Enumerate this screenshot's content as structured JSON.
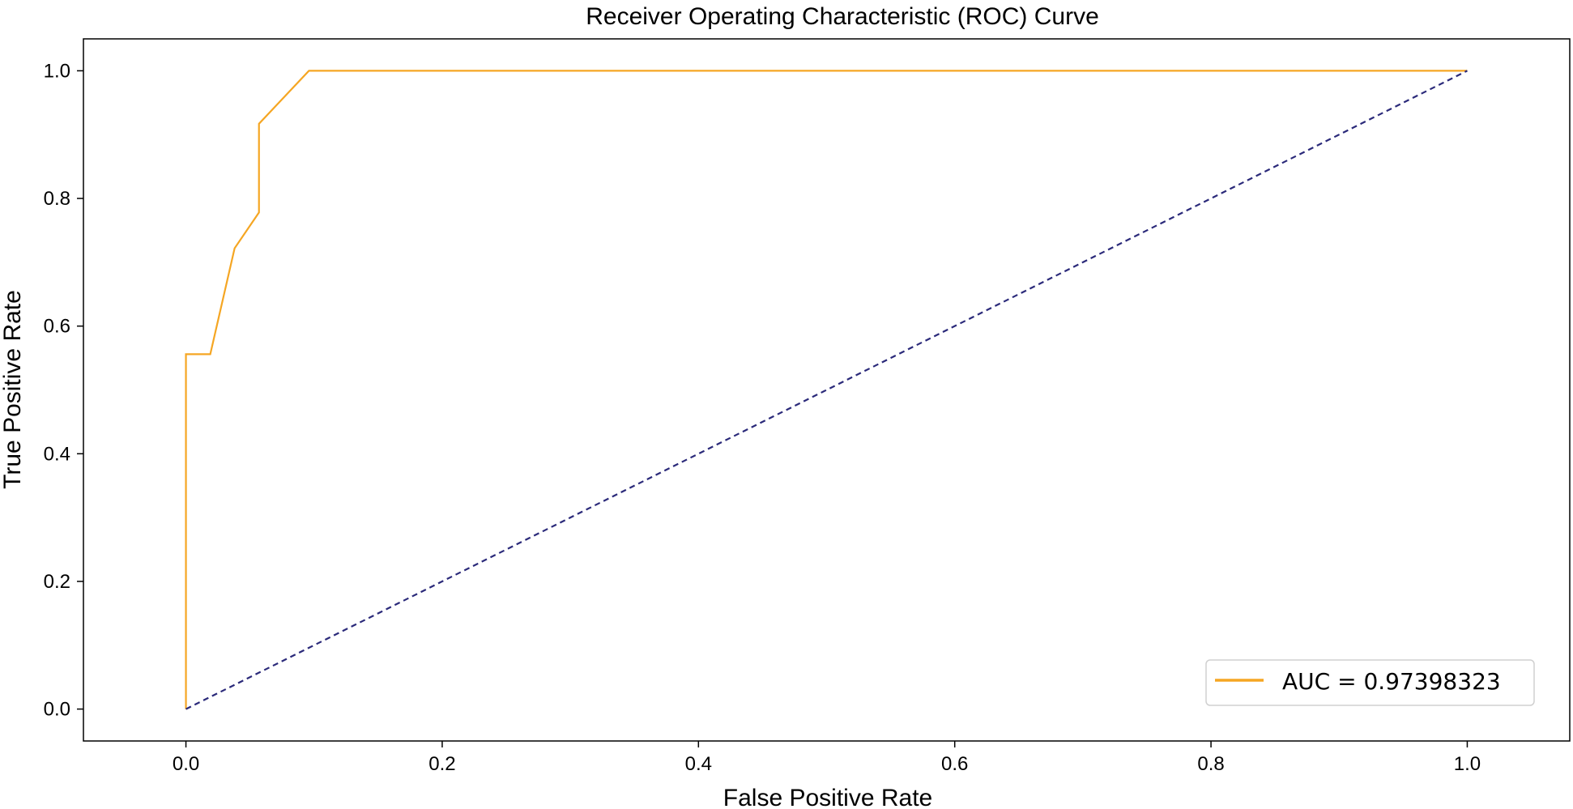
{
  "chart_data": {
    "type": "line",
    "title": "Receiver Operating Characteristic (ROC) Curve",
    "xlabel": "False Positive Rate",
    "ylabel": "True Positive Rate",
    "xlim": [
      -0.08,
      1.08
    ],
    "ylim": [
      -0.05,
      1.05
    ],
    "x_ticks": [
      0.0,
      0.2,
      0.4,
      0.6,
      0.8,
      1.0
    ],
    "x_tick_labels": [
      "0.0",
      "0.2",
      "0.4",
      "0.6",
      "0.8",
      "1.0"
    ],
    "y_ticks": [
      0.0,
      0.2,
      0.4,
      0.6,
      0.8,
      1.0
    ],
    "y_tick_labels": [
      "0.0",
      "0.2",
      "0.4",
      "0.6",
      "0.8",
      "1.0"
    ],
    "grid": false,
    "legend_position": "bottom-right",
    "series": [
      {
        "name": "AUC = 0.97398323",
        "color": "#f5a623",
        "style": "solid",
        "x": [
          0.0,
          0.0,
          0.019,
          0.038,
          0.057,
          0.057,
          0.096,
          1.0
        ],
        "y": [
          0.0,
          0.556,
          0.556,
          0.722,
          0.778,
          0.917,
          1.0,
          1.0
        ]
      },
      {
        "color": "#2b2a7a",
        "style": "dashed",
        "x": [
          0.0,
          1.0
        ],
        "y": [
          0.0,
          1.0
        ]
      }
    ]
  }
}
